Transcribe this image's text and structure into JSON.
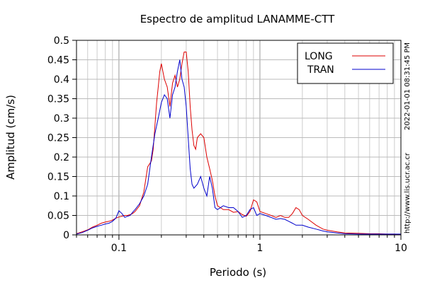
{
  "chart_data": {
    "type": "line",
    "title": "Espectro de amplitud LANAMME-CTT",
    "xlabel": "Periodo (s)",
    "ylabel": "Amplitud (cm/s)",
    "x_scale": "log",
    "xlim": [
      0.05,
      10
    ],
    "ylim": [
      0,
      0.5
    ],
    "grid": true,
    "legend_position": "top-right",
    "x_ticks": [
      {
        "value": 0.1,
        "label": "0.1"
      },
      {
        "value": 1,
        "label": "1"
      },
      {
        "value": 10,
        "label": "10"
      }
    ],
    "y_ticks": [
      {
        "value": 0,
        "label": "0"
      },
      {
        "value": 0.05,
        "label": "0.05"
      },
      {
        "value": 0.1,
        "label": "0.1"
      },
      {
        "value": 0.15,
        "label": "0.15"
      },
      {
        "value": 0.2,
        "label": "0.2"
      },
      {
        "value": 0.25,
        "label": "0.25"
      },
      {
        "value": 0.3,
        "label": "0.3"
      },
      {
        "value": 0.35,
        "label": "0.35"
      },
      {
        "value": 0.4,
        "label": "0.4"
      },
      {
        "value": 0.45,
        "label": "0.45"
      },
      {
        "value": 0.5,
        "label": "0.5"
      }
    ],
    "series": [
      {
        "name": "LONG",
        "color": "#dd0000",
        "points": [
          [
            0.05,
            0.003
          ],
          [
            0.055,
            0.008
          ],
          [
            0.06,
            0.013
          ],
          [
            0.065,
            0.02
          ],
          [
            0.07,
            0.025
          ],
          [
            0.075,
            0.03
          ],
          [
            0.08,
            0.033
          ],
          [
            0.085,
            0.035
          ],
          [
            0.09,
            0.038
          ],
          [
            0.095,
            0.043
          ],
          [
            0.1,
            0.046
          ],
          [
            0.105,
            0.048
          ],
          [
            0.11,
            0.05
          ],
          [
            0.115,
            0.05
          ],
          [
            0.12,
            0.052
          ],
          [
            0.125,
            0.055
          ],
          [
            0.13,
            0.06
          ],
          [
            0.14,
            0.075
          ],
          [
            0.15,
            0.11
          ],
          [
            0.16,
            0.175
          ],
          [
            0.17,
            0.19
          ],
          [
            0.175,
            0.22
          ],
          [
            0.18,
            0.28
          ],
          [
            0.185,
            0.34
          ],
          [
            0.19,
            0.38
          ],
          [
            0.195,
            0.42
          ],
          [
            0.2,
            0.44
          ],
          [
            0.21,
            0.4
          ],
          [
            0.22,
            0.38
          ],
          [
            0.23,
            0.33
          ],
          [
            0.24,
            0.39
          ],
          [
            0.25,
            0.41
          ],
          [
            0.26,
            0.38
          ],
          [
            0.27,
            0.4
          ],
          [
            0.28,
            0.44
          ],
          [
            0.29,
            0.47
          ],
          [
            0.3,
            0.47
          ],
          [
            0.31,
            0.42
          ],
          [
            0.32,
            0.33
          ],
          [
            0.33,
            0.27
          ],
          [
            0.34,
            0.23
          ],
          [
            0.35,
            0.22
          ],
          [
            0.36,
            0.25
          ],
          [
            0.38,
            0.26
          ],
          [
            0.4,
            0.25
          ],
          [
            0.42,
            0.2
          ],
          [
            0.44,
            0.17
          ],
          [
            0.46,
            0.14
          ],
          [
            0.48,
            0.1
          ],
          [
            0.5,
            0.075
          ],
          [
            0.55,
            0.065
          ],
          [
            0.6,
            0.065
          ],
          [
            0.65,
            0.058
          ],
          [
            0.7,
            0.06
          ],
          [
            0.75,
            0.052
          ],
          [
            0.8,
            0.048
          ],
          [
            0.85,
            0.06
          ],
          [
            0.9,
            0.09
          ],
          [
            0.95,
            0.085
          ],
          [
            1,
            0.06
          ],
          [
            1.1,
            0.055
          ],
          [
            1.2,
            0.05
          ],
          [
            1.3,
            0.045
          ],
          [
            1.4,
            0.05
          ],
          [
            1.5,
            0.045
          ],
          [
            1.6,
            0.045
          ],
          [
            1.7,
            0.055
          ],
          [
            1.8,
            0.07
          ],
          [
            1.9,
            0.065
          ],
          [
            2,
            0.05
          ],
          [
            2.2,
            0.04
          ],
          [
            2.5,
            0.025
          ],
          [
            2.8,
            0.015
          ],
          [
            3,
            0.012
          ],
          [
            3.5,
            0.008
          ],
          [
            4,
            0.005
          ],
          [
            5,
            0.004
          ],
          [
            6,
            0.003
          ],
          [
            7,
            0.003
          ],
          [
            8,
            0.002
          ],
          [
            9,
            0.002
          ],
          [
            10,
            0.001
          ]
        ]
      },
      {
        "name": "TRAN",
        "color": "#0000cc",
        "points": [
          [
            0.05,
            0.002
          ],
          [
            0.055,
            0.006
          ],
          [
            0.06,
            0.012
          ],
          [
            0.065,
            0.018
          ],
          [
            0.07,
            0.022
          ],
          [
            0.075,
            0.025
          ],
          [
            0.08,
            0.028
          ],
          [
            0.085,
            0.03
          ],
          [
            0.09,
            0.035
          ],
          [
            0.095,
            0.043
          ],
          [
            0.1,
            0.062
          ],
          [
            0.105,
            0.055
          ],
          [
            0.11,
            0.045
          ],
          [
            0.115,
            0.048
          ],
          [
            0.12,
            0.05
          ],
          [
            0.125,
            0.058
          ],
          [
            0.13,
            0.065
          ],
          [
            0.14,
            0.08
          ],
          [
            0.15,
            0.1
          ],
          [
            0.16,
            0.13
          ],
          [
            0.17,
            0.2
          ],
          [
            0.18,
            0.26
          ],
          [
            0.19,
            0.3
          ],
          [
            0.2,
            0.34
          ],
          [
            0.21,
            0.36
          ],
          [
            0.22,
            0.35
          ],
          [
            0.23,
            0.3
          ],
          [
            0.24,
            0.36
          ],
          [
            0.25,
            0.38
          ],
          [
            0.26,
            0.42
          ],
          [
            0.27,
            0.45
          ],
          [
            0.28,
            0.4
          ],
          [
            0.29,
            0.38
          ],
          [
            0.3,
            0.33
          ],
          [
            0.31,
            0.25
          ],
          [
            0.32,
            0.17
          ],
          [
            0.33,
            0.13
          ],
          [
            0.34,
            0.12
          ],
          [
            0.36,
            0.13
          ],
          [
            0.38,
            0.15
          ],
          [
            0.4,
            0.12
          ],
          [
            0.42,
            0.1
          ],
          [
            0.44,
            0.15
          ],
          [
            0.46,
            0.12
          ],
          [
            0.48,
            0.07
          ],
          [
            0.5,
            0.065
          ],
          [
            0.55,
            0.075
          ],
          [
            0.6,
            0.07
          ],
          [
            0.65,
            0.07
          ],
          [
            0.7,
            0.06
          ],
          [
            0.75,
            0.045
          ],
          [
            0.8,
            0.05
          ],
          [
            0.85,
            0.065
          ],
          [
            0.9,
            0.07
          ],
          [
            0.95,
            0.05
          ],
          [
            1,
            0.055
          ],
          [
            1.1,
            0.05
          ],
          [
            1.2,
            0.045
          ],
          [
            1.3,
            0.04
          ],
          [
            1.4,
            0.042
          ],
          [
            1.5,
            0.04
          ],
          [
            1.6,
            0.035
          ],
          [
            1.7,
            0.03
          ],
          [
            1.8,
            0.025
          ],
          [
            2,
            0.025
          ],
          [
            2.2,
            0.02
          ],
          [
            2.5,
            0.015
          ],
          [
            2.8,
            0.01
          ],
          [
            3,
            0.008
          ],
          [
            3.5,
            0.005
          ],
          [
            4,
            0.003
          ],
          [
            5,
            0.002
          ],
          [
            6,
            0.002
          ],
          [
            7,
            0.002
          ],
          [
            8,
            0.002
          ],
          [
            9,
            0.002
          ],
          [
            10,
            0.002
          ]
        ]
      }
    ]
  },
  "side_text": {
    "url": "http://www.lis.ucr.ac.cr",
    "timestamp": "2022-01-01 08:31:45 PM"
  }
}
